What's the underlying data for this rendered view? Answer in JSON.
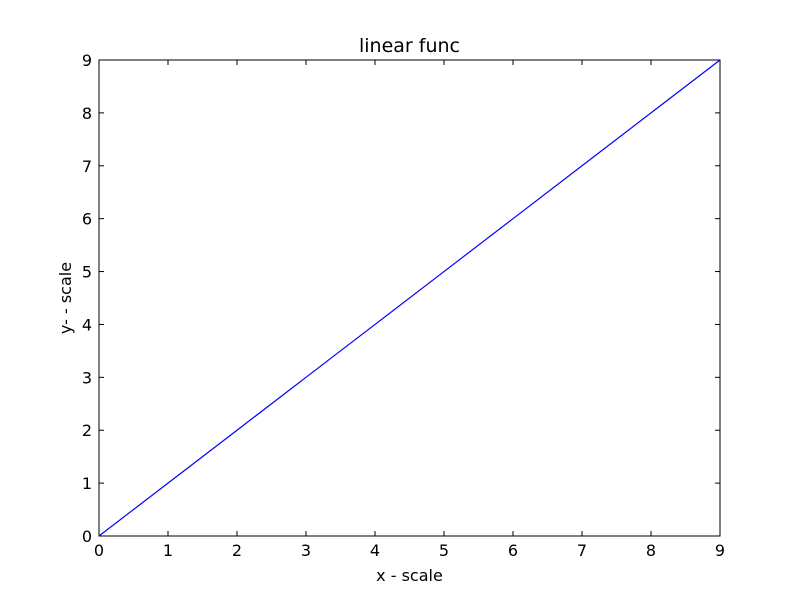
{
  "chart_data": {
    "type": "line",
    "title": "linear func",
    "xlabel": "x - scale",
    "ylabel": "y- - scale",
    "xlim": [
      0,
      9
    ],
    "ylim": [
      0,
      9
    ],
    "xticks": [
      "0",
      "1",
      "2",
      "3",
      "4",
      "5",
      "6",
      "7",
      "8",
      "9"
    ],
    "yticks": [
      "0",
      "1",
      "2",
      "3",
      "4",
      "5",
      "6",
      "7",
      "8",
      "9"
    ],
    "grid": false,
    "series": [
      {
        "color": "#0000ff",
        "x": [
          0,
          1,
          2,
          3,
          4,
          5,
          6,
          7,
          8,
          9
        ],
        "y": [
          0,
          1,
          2,
          3,
          4,
          5,
          6,
          7,
          8,
          9
        ]
      }
    ]
  }
}
